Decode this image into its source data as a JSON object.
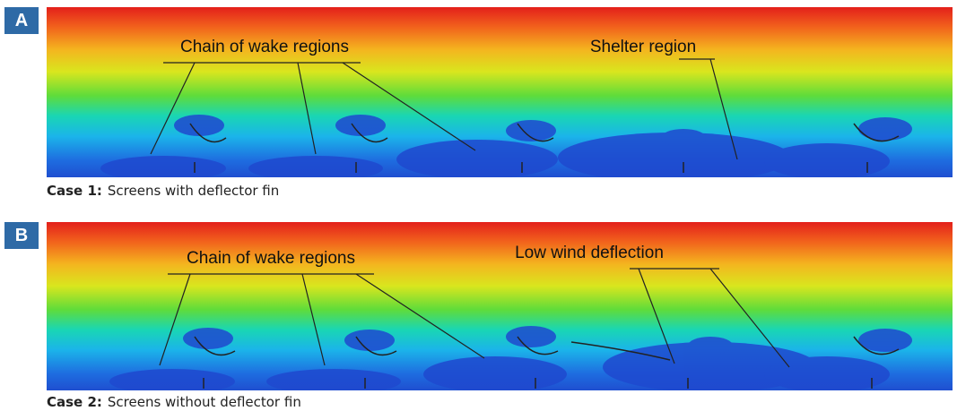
{
  "panels": [
    {
      "label": "A",
      "annotations": [
        "Chain of wake regions",
        "Shelter region"
      ],
      "caption": {
        "case": "Case 1:",
        "text": "Screens with deflector fin"
      }
    },
    {
      "label": "B",
      "annotations": [
        "Chain of wake regions",
        "Low wind deflection"
      ],
      "caption": {
        "case": "Case 2:",
        "text": "Screens without deflector fin"
      }
    }
  ]
}
